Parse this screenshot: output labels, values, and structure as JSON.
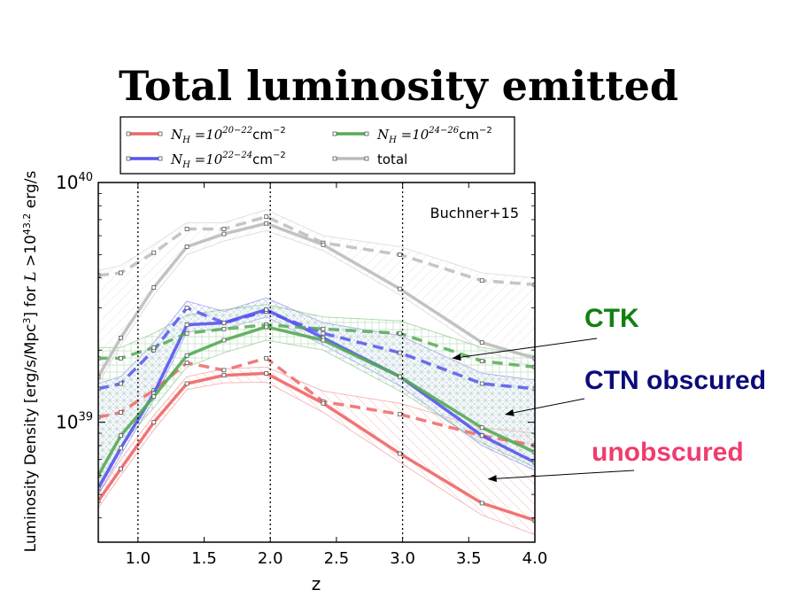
{
  "title": "Total luminosity emitted",
  "annotations": [
    {
      "label": "CTK",
      "color": "#118011",
      "x": 3.38,
      "y": 1.85
    },
    {
      "label": "CTN obscured",
      "color": "#0b0b7a",
      "x": 3.78,
      "y": 1.08
    },
    {
      "label": "unobscured",
      "color": "#ef3c6e",
      "x": 3.65,
      "y": 0.58
    }
  ],
  "chart_data": {
    "type": "line",
    "xlabel": "z",
    "ylabel": "Luminosity Density [erg/s/Mpc³] for L>10^43.2 erg/s",
    "xlim": [
      0.7,
      4.0
    ],
    "ylim_log10": [
      38.5,
      40.0
    ],
    "yscale": "log",
    "x_ticks": [
      "1.0",
      "1.5",
      "2.0",
      "2.5",
      "3.0",
      "3.5",
      "4.0"
    ],
    "y_ticks": [
      {
        "base": "10",
        "exp": "39",
        "value": 39
      },
      {
        "base": "10",
        "exp": "40",
        "value": 40
      }
    ],
    "vertical_lines_x": [
      1.0,
      2.0,
      3.0
    ],
    "text_label": "Buchner+15",
    "legend_entries": [
      {
        "label_main": "N",
        "label_sub": "H",
        "label_eq": " =10",
        "label_exp": "20−22",
        "label_unit": "cm",
        "label_unit_exp": "−2"
      },
      {
        "label_main": "N",
        "label_sub": "H",
        "label_eq": " =10",
        "label_exp": "22−24",
        "label_unit": "cm",
        "label_unit_exp": "−2"
      },
      {
        "label_main": "N",
        "label_sub": "H",
        "label_eq": " =10",
        "label_exp": "24−26",
        "label_unit": "cm",
        "label_unit_exp": "−2"
      },
      {
        "label_main": "",
        "label_sub": "",
        "label_eq": "",
        "label_exp": "",
        "label_unit": "total",
        "label_unit_exp": ""
      }
    ],
    "series": [
      {
        "color": "#ee6666",
        "solid": {
          "x": [
            0.7,
            0.87,
            1.12,
            1.37,
            1.65,
            1.97,
            2.4,
            2.98,
            3.6,
            4.0
          ],
          "y": [
            0.47,
            0.64,
            1.0,
            1.45,
            1.57,
            1.6,
            1.2,
            0.74,
            0.46,
            0.39
          ]
        },
        "dashed": {
          "x": [
            0.7,
            0.87,
            1.12,
            1.37,
            1.65,
            1.97,
            2.4,
            2.98,
            3.6,
            4.0
          ],
          "y": [
            1.05,
            1.1,
            1.36,
            1.77,
            1.65,
            1.85,
            1.22,
            1.08,
            0.88,
            0.8
          ]
        },
        "band_upper": [
          0.5,
          0.7,
          1.07,
          1.55,
          1.67,
          1.7,
          1.35,
          1.2,
          0.95,
          0.9
        ],
        "band_lower": [
          0.44,
          0.6,
          0.93,
          1.37,
          1.46,
          1.47,
          1.1,
          0.68,
          0.41,
          0.34
        ]
      },
      {
        "color": "#5555ee",
        "solid": {
          "x": [
            0.7,
            0.87,
            1.12,
            1.37,
            1.65,
            1.97,
            2.4,
            2.98,
            3.6,
            4.0
          ],
          "y": [
            0.53,
            0.78,
            1.32,
            2.55,
            2.6,
            2.95,
            2.25,
            1.55,
            0.88,
            0.68
          ]
        },
        "dashed": {
          "x": [
            0.7,
            0.87,
            1.12,
            1.37,
            1.65,
            1.97,
            2.4,
            2.98,
            3.6,
            4.0
          ],
          "y": [
            1.38,
            1.45,
            2.0,
            3.0,
            2.6,
            2.9,
            2.35,
            1.95,
            1.45,
            1.38
          ]
        },
        "band_upper": [
          1.45,
          1.55,
          2.15,
          3.2,
          2.9,
          3.3,
          2.6,
          2.3,
          1.6,
          1.5
        ],
        "band_lower": [
          0.5,
          0.73,
          1.24,
          2.38,
          2.45,
          2.75,
          2.1,
          1.42,
          0.8,
          0.63
        ]
      },
      {
        "color": "#55aa55",
        "solid": {
          "x": [
            0.7,
            0.87,
            1.12,
            1.37,
            1.65,
            1.97,
            2.4,
            2.98,
            3.6,
            4.0
          ],
          "y": [
            0.6,
            0.88,
            1.28,
            1.9,
            2.2,
            2.5,
            2.2,
            1.55,
            0.95,
            0.75
          ]
        },
        "dashed": {
          "x": [
            0.7,
            0.87,
            1.12,
            1.37,
            1.65,
            1.97,
            2.4,
            2.98,
            3.6,
            4.0
          ],
          "y": [
            1.85,
            1.85,
            2.05,
            2.35,
            2.45,
            2.55,
            2.45,
            2.35,
            1.8,
            1.7
          ]
        },
        "band_upper": [
          2.05,
          2.05,
          2.35,
          2.8,
          2.95,
          3.1,
          2.75,
          2.65,
          2.05,
          1.9
        ],
        "band_lower": [
          0.55,
          0.8,
          1.15,
          1.7,
          1.95,
          2.2,
          2.0,
          1.35,
          0.82,
          0.65
        ]
      },
      {
        "color": "#bbbbbb",
        "solid": {
          "x": [
            0.7,
            0.87,
            1.12,
            1.37,
            1.65,
            1.97,
            2.4,
            2.98,
            3.6,
            4.0
          ],
          "y": [
            1.55,
            2.25,
            3.65,
            5.4,
            6.1,
            6.75,
            5.5,
            3.6,
            2.15,
            1.85
          ]
        },
        "dashed": {
          "x": [
            0.7,
            0.87,
            1.12,
            1.37,
            1.65,
            1.97,
            2.4,
            2.98,
            3.6,
            4.0
          ],
          "y": [
            4.1,
            4.2,
            5.1,
            6.4,
            6.4,
            7.2,
            5.6,
            5.0,
            3.9,
            3.75
          ]
        },
        "band_upper": [
          4.3,
          4.5,
          5.5,
          6.8,
          6.8,
          7.7,
          6.0,
          5.4,
          4.2,
          4.0
        ],
        "band_lower": [
          1.45,
          2.1,
          3.4,
          5.0,
          5.7,
          6.3,
          5.2,
          3.4,
          2.0,
          1.7
        ]
      }
    ],
    "y_units_note": "y values are in units of 1e39"
  }
}
